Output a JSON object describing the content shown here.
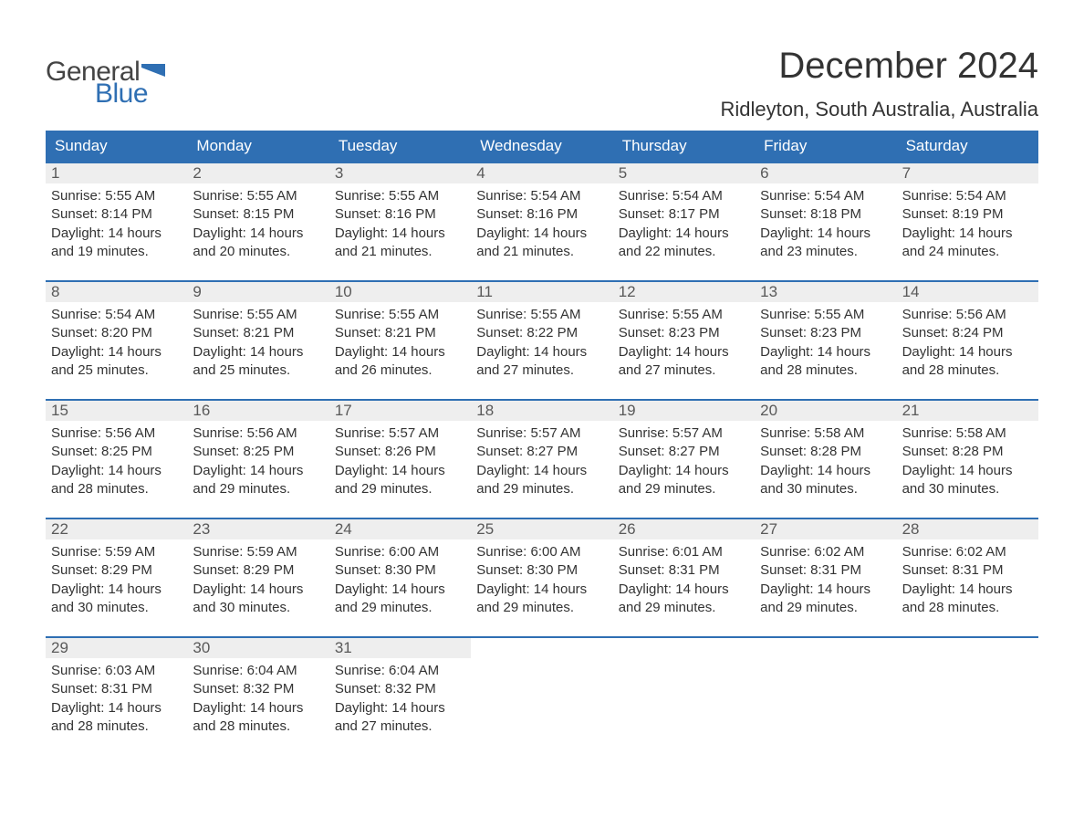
{
  "logo": {
    "text_top": "General",
    "text_bottom": "Blue"
  },
  "title": "December 2024",
  "subtitle": "Ridleyton, South Australia, Australia",
  "colors": {
    "header_bg": "#2f6fb3",
    "daynum_bg": "#eeeeee",
    "text": "#333333",
    "logo_gray": "#444444",
    "logo_blue": "#2f6fb3",
    "week_border": "#2f6fb3",
    "background": "#ffffff"
  },
  "fontsizes": {
    "title": 40,
    "subtitle": 22,
    "weekday": 17,
    "daynum": 17,
    "body": 15,
    "logo": 30
  },
  "weekdays": [
    "Sunday",
    "Monday",
    "Tuesday",
    "Wednesday",
    "Thursday",
    "Friday",
    "Saturday"
  ],
  "weeks": [
    [
      {
        "n": "1",
        "sunrise": "5:55 AM",
        "sunset": "8:14 PM",
        "day_h": "14",
        "day_m": "19"
      },
      {
        "n": "2",
        "sunrise": "5:55 AM",
        "sunset": "8:15 PM",
        "day_h": "14",
        "day_m": "20"
      },
      {
        "n": "3",
        "sunrise": "5:55 AM",
        "sunset": "8:16 PM",
        "day_h": "14",
        "day_m": "21"
      },
      {
        "n": "4",
        "sunrise": "5:54 AM",
        "sunset": "8:16 PM",
        "day_h": "14",
        "day_m": "21"
      },
      {
        "n": "5",
        "sunrise": "5:54 AM",
        "sunset": "8:17 PM",
        "day_h": "14",
        "day_m": "22"
      },
      {
        "n": "6",
        "sunrise": "5:54 AM",
        "sunset": "8:18 PM",
        "day_h": "14",
        "day_m": "23"
      },
      {
        "n": "7",
        "sunrise": "5:54 AM",
        "sunset": "8:19 PM",
        "day_h": "14",
        "day_m": "24"
      }
    ],
    [
      {
        "n": "8",
        "sunrise": "5:54 AM",
        "sunset": "8:20 PM",
        "day_h": "14",
        "day_m": "25"
      },
      {
        "n": "9",
        "sunrise": "5:55 AM",
        "sunset": "8:21 PM",
        "day_h": "14",
        "day_m": "25"
      },
      {
        "n": "10",
        "sunrise": "5:55 AM",
        "sunset": "8:21 PM",
        "day_h": "14",
        "day_m": "26"
      },
      {
        "n": "11",
        "sunrise": "5:55 AM",
        "sunset": "8:22 PM",
        "day_h": "14",
        "day_m": "27"
      },
      {
        "n": "12",
        "sunrise": "5:55 AM",
        "sunset": "8:23 PM",
        "day_h": "14",
        "day_m": "27"
      },
      {
        "n": "13",
        "sunrise": "5:55 AM",
        "sunset": "8:23 PM",
        "day_h": "14",
        "day_m": "28"
      },
      {
        "n": "14",
        "sunrise": "5:56 AM",
        "sunset": "8:24 PM",
        "day_h": "14",
        "day_m": "28"
      }
    ],
    [
      {
        "n": "15",
        "sunrise": "5:56 AM",
        "sunset": "8:25 PM",
        "day_h": "14",
        "day_m": "28"
      },
      {
        "n": "16",
        "sunrise": "5:56 AM",
        "sunset": "8:25 PM",
        "day_h": "14",
        "day_m": "29"
      },
      {
        "n": "17",
        "sunrise": "5:57 AM",
        "sunset": "8:26 PM",
        "day_h": "14",
        "day_m": "29"
      },
      {
        "n": "18",
        "sunrise": "5:57 AM",
        "sunset": "8:27 PM",
        "day_h": "14",
        "day_m": "29"
      },
      {
        "n": "19",
        "sunrise": "5:57 AM",
        "sunset": "8:27 PM",
        "day_h": "14",
        "day_m": "29"
      },
      {
        "n": "20",
        "sunrise": "5:58 AM",
        "sunset": "8:28 PM",
        "day_h": "14",
        "day_m": "30"
      },
      {
        "n": "21",
        "sunrise": "5:58 AM",
        "sunset": "8:28 PM",
        "day_h": "14",
        "day_m": "30"
      }
    ],
    [
      {
        "n": "22",
        "sunrise": "5:59 AM",
        "sunset": "8:29 PM",
        "day_h": "14",
        "day_m": "30"
      },
      {
        "n": "23",
        "sunrise": "5:59 AM",
        "sunset": "8:29 PM",
        "day_h": "14",
        "day_m": "30"
      },
      {
        "n": "24",
        "sunrise": "6:00 AM",
        "sunset": "8:30 PM",
        "day_h": "14",
        "day_m": "29"
      },
      {
        "n": "25",
        "sunrise": "6:00 AM",
        "sunset": "8:30 PM",
        "day_h": "14",
        "day_m": "29"
      },
      {
        "n": "26",
        "sunrise": "6:01 AM",
        "sunset": "8:31 PM",
        "day_h": "14",
        "day_m": "29"
      },
      {
        "n": "27",
        "sunrise": "6:02 AM",
        "sunset": "8:31 PM",
        "day_h": "14",
        "day_m": "29"
      },
      {
        "n": "28",
        "sunrise": "6:02 AM",
        "sunset": "8:31 PM",
        "day_h": "14",
        "day_m": "28"
      }
    ],
    [
      {
        "n": "29",
        "sunrise": "6:03 AM",
        "sunset": "8:31 PM",
        "day_h": "14",
        "day_m": "28"
      },
      {
        "n": "30",
        "sunrise": "6:04 AM",
        "sunset": "8:32 PM",
        "day_h": "14",
        "day_m": "28"
      },
      {
        "n": "31",
        "sunrise": "6:04 AM",
        "sunset": "8:32 PM",
        "day_h": "14",
        "day_m": "27"
      },
      null,
      null,
      null,
      null
    ]
  ],
  "labels": {
    "sunrise": "Sunrise: ",
    "sunset": "Sunset: ",
    "daylight_prefix": "Daylight: ",
    "hours_word": " hours",
    "and_word": "and ",
    "minutes_word": " minutes."
  }
}
